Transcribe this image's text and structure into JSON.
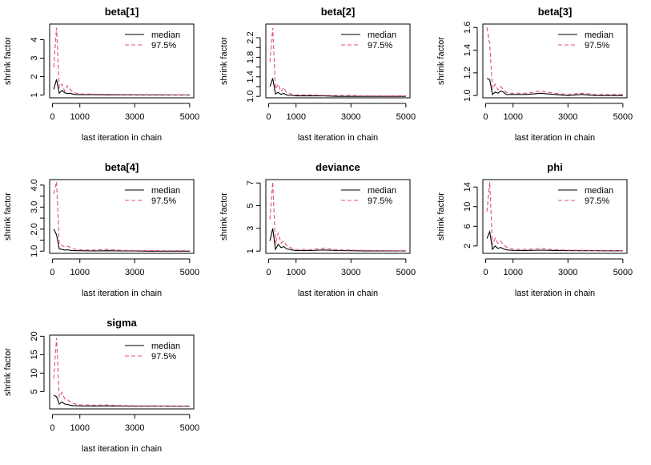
{
  "chart_data": [
    {
      "type": "line",
      "title": "beta[1]",
      "xlabel": "last iteration in chain",
      "ylabel": "shrink factor",
      "xlim": [
        -100,
        5150
      ],
      "ylim": [
        0.85,
        4.85
      ],
      "xticks": [
        0,
        1000,
        3000,
        5000
      ],
      "xtick_labels": [
        "0",
        "1000",
        "3000",
        "5000"
      ],
      "yticks": [
        1,
        2,
        3,
        4
      ],
      "ytick_labels": [
        "1",
        "2",
        "3",
        "4"
      ],
      "legend": {
        "position": "top-right",
        "entries": [
          "median",
          "97.5%"
        ]
      },
      "series": [
        {
          "name": "median",
          "color": "#000000",
          "dash": "solid",
          "x": [
            50,
            150,
            250,
            350,
            450,
            550,
            650,
            750,
            850,
            1000,
            1500,
            2000,
            2500,
            3000,
            3500,
            4000,
            4500,
            5000
          ],
          "values": [
            1.3,
            1.85,
            1.1,
            1.25,
            1.12,
            1.08,
            1.1,
            1.05,
            1.03,
            1.02,
            1.02,
            1.01,
            1.01,
            1.01,
            1.0,
            1.0,
            1.0,
            1.0
          ]
        },
        {
          "name": "97.5%",
          "color": "#df536b",
          "dash": "dashed",
          "x": [
            50,
            150,
            250,
            350,
            450,
            550,
            650,
            750,
            850,
            1000,
            1500,
            2000,
            2500,
            3000,
            3500,
            4000,
            4500,
            5000
          ],
          "values": [
            2.5,
            4.65,
            1.4,
            1.6,
            1.2,
            1.5,
            1.3,
            1.15,
            1.1,
            1.06,
            1.05,
            1.04,
            1.03,
            1.03,
            1.02,
            1.02,
            1.01,
            1.01
          ]
        }
      ]
    },
    {
      "type": "line",
      "title": "beta[2]",
      "xlabel": "last iteration in chain",
      "ylabel": "shrink factor",
      "xlim": [
        -100,
        5150
      ],
      "ylim": [
        0.97,
        2.48
      ],
      "xticks": [
        0,
        1000,
        3000,
        5000
      ],
      "xtick_labels": [
        "0",
        "1000",
        "3000",
        "5000"
      ],
      "yticks": [
        1.0,
        1.2,
        1.4,
        1.6,
        1.8,
        2.0,
        2.2
      ],
      "ytick_labels": [
        "1.0",
        "",
        "1.4",
        "",
        "1.8",
        "",
        "2.2"
      ],
      "legend": {
        "position": "top-right",
        "entries": [
          "median",
          "97.5%"
        ]
      },
      "series": [
        {
          "name": "median",
          "color": "#000000",
          "dash": "solid",
          "x": [
            50,
            150,
            250,
            350,
            450,
            550,
            650,
            750,
            850,
            1000,
            1500,
            2000,
            2500,
            3000,
            3500,
            4000,
            4500,
            5000
          ],
          "values": [
            1.2,
            1.37,
            1.05,
            1.08,
            1.04,
            1.06,
            1.03,
            1.02,
            1.02,
            1.01,
            1.01,
            1.01,
            1.0,
            1.0,
            1.0,
            1.0,
            1.0,
            1.0
          ]
        },
        {
          "name": "97.5%",
          "color": "#df536b",
          "dash": "dashed",
          "x": [
            50,
            150,
            250,
            350,
            450,
            550,
            650,
            750,
            850,
            1000,
            1500,
            2000,
            2500,
            3000,
            3500,
            4000,
            4500,
            5000
          ],
          "values": [
            1.7,
            2.4,
            1.15,
            1.25,
            1.1,
            1.18,
            1.08,
            1.06,
            1.04,
            1.03,
            1.03,
            1.02,
            1.02,
            1.02,
            1.01,
            1.01,
            1.01,
            1.01
          ]
        }
      ]
    },
    {
      "type": "line",
      "title": "beta[3]",
      "xlabel": "last iteration in chain",
      "ylabel": "shrink factor",
      "xlim": [
        -100,
        5150
      ],
      "ylim": [
        0.98,
        1.63
      ],
      "xticks": [
        0,
        1000,
        3000,
        5000
      ],
      "xtick_labels": [
        "0",
        "1000",
        "3000",
        "5000"
      ],
      "yticks": [
        1.0,
        1.2,
        1.4,
        1.6
      ],
      "ytick_labels": [
        "1.0",
        "1.2",
        "1.4",
        "1.6"
      ],
      "legend": {
        "position": "top-right",
        "entries": [
          "median",
          "97.5%"
        ]
      },
      "series": [
        {
          "name": "median",
          "color": "#000000",
          "dash": "solid",
          "x": [
            50,
            150,
            250,
            350,
            450,
            550,
            650,
            750,
            850,
            1000,
            1500,
            2000,
            2500,
            3000,
            3500,
            4000,
            4500,
            5000
          ],
          "values": [
            1.15,
            1.14,
            1.01,
            1.03,
            1.02,
            1.04,
            1.03,
            1.01,
            1.01,
            1.01,
            1.01,
            1.02,
            1.01,
            1.0,
            1.01,
            1.0,
            1.0,
            1.0
          ]
        },
        {
          "name": "97.5%",
          "color": "#df536b",
          "dash": "dashed",
          "x": [
            50,
            150,
            250,
            350,
            450,
            550,
            650,
            750,
            850,
            1000,
            1500,
            2000,
            2500,
            3000,
            3500,
            4000,
            4500,
            5000
          ],
          "values": [
            1.6,
            1.45,
            1.06,
            1.1,
            1.05,
            1.08,
            1.05,
            1.03,
            1.02,
            1.02,
            1.02,
            1.04,
            1.02,
            1.01,
            1.02,
            1.01,
            1.01,
            1.01
          ]
        }
      ]
    },
    {
      "type": "line",
      "title": "beta[4]",
      "xlabel": "last iteration in chain",
      "ylabel": "shrink factor",
      "xlim": [
        -100,
        5150
      ],
      "ylim": [
        0.9,
        4.25
      ],
      "xticks": [
        0,
        1000,
        3000,
        5000
      ],
      "xtick_labels": [
        "0",
        "1000",
        "3000",
        "5000"
      ],
      "yticks": [
        1.0,
        1.5,
        2.0,
        2.5,
        3.0,
        3.5,
        4.0
      ],
      "ytick_labels": [
        "1.0",
        "",
        "2.0",
        "",
        "3.0",
        "",
        "4.0"
      ],
      "legend": {
        "position": "top-right",
        "entries": [
          "median",
          "97.5%"
        ]
      },
      "series": [
        {
          "name": "median",
          "color": "#000000",
          "dash": "solid",
          "x": [
            50,
            150,
            250,
            350,
            450,
            550,
            650,
            750,
            850,
            1000,
            1500,
            2000,
            2500,
            3000,
            3500,
            4000,
            4500,
            5000
          ],
          "values": [
            2.0,
            1.75,
            1.1,
            1.08,
            1.05,
            1.06,
            1.04,
            1.03,
            1.02,
            1.02,
            1.01,
            1.02,
            1.01,
            1.01,
            1.0,
            1.0,
            1.0,
            1.0
          ]
        },
        {
          "name": "97.5%",
          "color": "#df536b",
          "dash": "dashed",
          "x": [
            50,
            150,
            250,
            350,
            450,
            550,
            650,
            750,
            850,
            1000,
            1500,
            2000,
            2500,
            3000,
            3500,
            4000,
            4500,
            5000
          ],
          "values": [
            3.6,
            4.15,
            1.3,
            1.25,
            1.2,
            1.22,
            1.18,
            1.12,
            1.08,
            1.06,
            1.05,
            1.08,
            1.04,
            1.03,
            1.03,
            1.02,
            1.02,
            1.02
          ]
        }
      ]
    },
    {
      "type": "line",
      "title": "deviance",
      "xlabel": "last iteration in chain",
      "ylabel": "shrink factor",
      "xlim": [
        -100,
        5150
      ],
      "ylim": [
        0.8,
        7.3
      ],
      "xticks": [
        0,
        1000,
        3000,
        5000
      ],
      "xtick_labels": [
        "0",
        "1000",
        "3000",
        "5000"
      ],
      "yticks": [
        1,
        3,
        5,
        7
      ],
      "ytick_labels": [
        "1",
        "3",
        "5",
        "7"
      ],
      "legend": {
        "position": "top-right",
        "entries": [
          "median",
          "97.5%"
        ]
      },
      "series": [
        {
          "name": "median",
          "color": "#000000",
          "dash": "solid",
          "x": [
            50,
            150,
            250,
            350,
            450,
            550,
            650,
            750,
            850,
            1000,
            1500,
            2000,
            2500,
            3000,
            3500,
            4000,
            4500,
            5000
          ],
          "values": [
            1.9,
            3.0,
            1.15,
            1.6,
            1.3,
            1.4,
            1.2,
            1.15,
            1.1,
            1.05,
            1.05,
            1.1,
            1.05,
            1.03,
            1.02,
            1.02,
            1.01,
            1.01
          ]
        },
        {
          "name": "97.5%",
          "color": "#df536b",
          "dash": "dashed",
          "x": [
            50,
            150,
            250,
            350,
            450,
            550,
            650,
            750,
            850,
            1000,
            1500,
            2000,
            2500,
            3000,
            3500,
            4000,
            4500,
            5000
          ],
          "values": [
            3.8,
            7.1,
            1.6,
            2.6,
            1.7,
            1.9,
            1.5,
            1.35,
            1.25,
            1.15,
            1.12,
            1.25,
            1.12,
            1.08,
            1.06,
            1.05,
            1.04,
            1.03
          ]
        }
      ]
    },
    {
      "type": "line",
      "title": "phi",
      "xlabel": "last iteration in chain",
      "ylabel": "shrink factor",
      "xlim": [
        -100,
        5150
      ],
      "ylim": [
        0.5,
        15.5
      ],
      "xticks": [
        0,
        1000,
        3000,
        5000
      ],
      "xtick_labels": [
        "0",
        "1000",
        "3000",
        "5000"
      ],
      "yticks": [
        2,
        6,
        10,
        14
      ],
      "ytick_labels": [
        "2",
        "6",
        "10",
        "14"
      ],
      "legend": {
        "position": "top-right",
        "entries": [
          "median",
          "97.5%"
        ]
      },
      "series": [
        {
          "name": "median",
          "color": "#000000",
          "dash": "solid",
          "x": [
            50,
            150,
            250,
            350,
            450,
            550,
            650,
            750,
            850,
            1000,
            1500,
            2000,
            2500,
            3000,
            3500,
            4000,
            4500,
            5000
          ],
          "values": [
            3.5,
            4.9,
            1.3,
            2.0,
            1.5,
            1.7,
            1.4,
            1.25,
            1.15,
            1.1,
            1.08,
            1.15,
            1.08,
            1.05,
            1.04,
            1.03,
            1.02,
            1.02
          ]
        },
        {
          "name": "97.5%",
          "color": "#df536b",
          "dash": "dashed",
          "x": [
            50,
            150,
            250,
            350,
            450,
            550,
            650,
            750,
            850,
            1000,
            1500,
            2000,
            2500,
            3000,
            3500,
            4000,
            4500,
            5000
          ],
          "values": [
            9.0,
            15.0,
            2.2,
            3.6,
            2.5,
            3.0,
            2.3,
            1.8,
            1.5,
            1.35,
            1.3,
            1.5,
            1.25,
            1.15,
            1.12,
            1.1,
            1.08,
            1.06
          ]
        }
      ]
    },
    {
      "type": "line",
      "title": "sigma",
      "xlabel": "last iteration in chain",
      "ylabel": "shrink factor",
      "xlim": [
        -100,
        5150
      ],
      "ylim": [
        0.3,
        20.3
      ],
      "xticks": [
        0,
        1000,
        3000,
        5000
      ],
      "xtick_labels": [
        "0",
        "1000",
        "3000",
        "5000"
      ],
      "yticks": [
        5,
        10,
        15,
        20
      ],
      "ytick_labels": [
        "5",
        "10",
        "15",
        "20"
      ],
      "legend": {
        "position": "top-right",
        "entries": [
          "median",
          "97.5%"
        ]
      },
      "series": [
        {
          "name": "median",
          "color": "#000000",
          "dash": "solid",
          "x": [
            50,
            150,
            250,
            350,
            450,
            550,
            650,
            750,
            850,
            1000,
            1500,
            2000,
            2500,
            3000,
            3500,
            4000,
            4500,
            5000
          ],
          "values": [
            4.0,
            3.6,
            1.6,
            2.2,
            1.6,
            1.5,
            1.3,
            1.2,
            1.15,
            1.1,
            1.08,
            1.1,
            1.06,
            1.04,
            1.04,
            1.03,
            1.02,
            1.02
          ]
        },
        {
          "name": "97.5%",
          "color": "#df536b",
          "dash": "dashed",
          "x": [
            50,
            150,
            250,
            350,
            450,
            550,
            650,
            750,
            850,
            1000,
            1500,
            2000,
            2500,
            3000,
            3500,
            4000,
            4500,
            5000
          ],
          "values": [
            8.5,
            19.5,
            3.5,
            4.8,
            3.0,
            2.8,
            2.2,
            1.8,
            1.6,
            1.4,
            1.3,
            1.35,
            1.22,
            1.15,
            1.12,
            1.1,
            1.08,
            1.06
          ]
        }
      ]
    }
  ]
}
